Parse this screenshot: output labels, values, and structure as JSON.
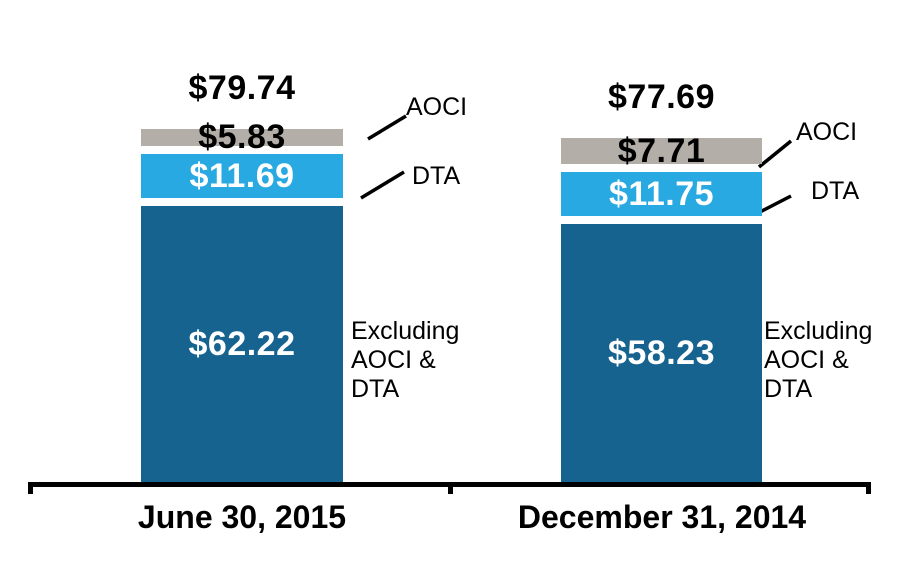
{
  "chart_data": {
    "type": "bar",
    "stacked": true,
    "categories": [
      "June 30, 2015",
      "December 31, 2014"
    ],
    "series": [
      {
        "name": "Excluding AOCI & DTA",
        "values": [
          62.22,
          58.23
        ],
        "color": "#176390",
        "data_labels": [
          "$62.22",
          "$58.23"
        ]
      },
      {
        "name": "DTA",
        "values": [
          11.69,
          11.75
        ],
        "color": "#29a9e1",
        "data_labels": [
          "$11.69",
          "$11.75"
        ]
      },
      {
        "name": "AOCI",
        "values": [
          5.83,
          7.71
        ],
        "color": "#b3aea7",
        "data_labels": [
          "$5.83",
          "$7.71"
        ]
      }
    ],
    "totals": [
      79.74,
      77.69
    ],
    "total_labels": [
      "$79.74",
      "$77.69"
    ],
    "ylim": [
      0,
      80
    ],
    "grid": false,
    "legend_position": "callout-right"
  },
  "bars": [
    {
      "category": "June 30, 2015",
      "total_label": "$79.74",
      "aoci_label": "$5.83",
      "dta_label": "$11.69",
      "core_label": "$62.22",
      "note": "Excluding\nAOCI &\nDTA"
    },
    {
      "category": "December 31, 2014",
      "total_label": "$77.69",
      "aoci_label": "$7.71",
      "dta_label": "$11.75",
      "core_label": "$58.23",
      "note": "Excluding\nAOCI &\nDTA"
    }
  ],
  "callouts": {
    "aoci": "AOCI",
    "dta": "DTA"
  },
  "colors": {
    "core": "#176390",
    "dta": "#29a9e1",
    "aoci": "#b3aea7",
    "ink": "#000000",
    "background": "#ffffff"
  }
}
